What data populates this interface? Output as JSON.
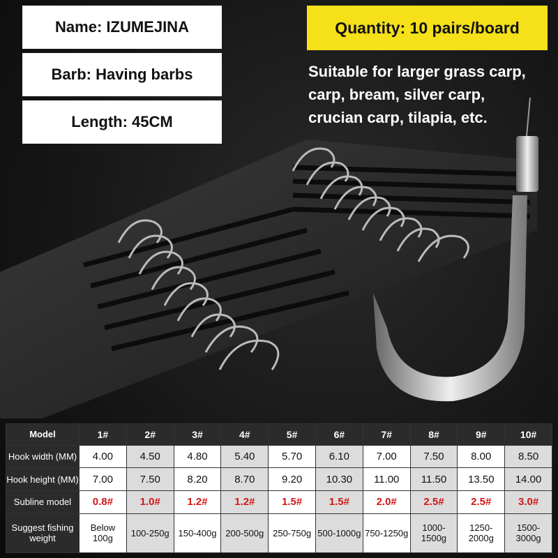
{
  "info": {
    "name": "Name: IZUMEJINA",
    "barb": "Barb: Having barbs",
    "length": "Length: 45CM"
  },
  "quantity": "Quantity: 10 pairs/board",
  "suitable": [
    "Suitable for larger grass carp,",
    "carp, bream, silver carp,",
    "crucian carp, tilapia, etc."
  ],
  "colors": {
    "highlight": "#f5e01a",
    "subline_text": "#d01818",
    "header_bg": "#2b2b2b"
  },
  "table": {
    "header": [
      "Model",
      "1#",
      "2#",
      "3#",
      "4#",
      "5#",
      "6#",
      "7#",
      "8#",
      "9#",
      "10#"
    ],
    "rows": [
      {
        "label": "Hook width (MM)",
        "values": [
          "4.00",
          "4.50",
          "4.80",
          "5.40",
          "5.70",
          "6.10",
          "7.00",
          "7.50",
          "8.00",
          "8.50"
        ]
      },
      {
        "label": "Hook height (MM)",
        "values": [
          "7.00",
          "7.50",
          "8.20",
          "8.70",
          "9.20",
          "10.30",
          "11.00",
          "11.50",
          "13.50",
          "14.00"
        ]
      },
      {
        "label": "Subline model",
        "values": [
          "0.8#",
          "1.0#",
          "1.2#",
          "1.2#",
          "1.5#",
          "1.5#",
          "2.0#",
          "2.5#",
          "2.5#",
          "3.0#"
        ]
      },
      {
        "label": "Suggest fishing weight",
        "values": [
          "Below 100g",
          "100-250g",
          "150-400g",
          "200-500g",
          "250-750g",
          "500-1000g",
          "750-1250g",
          "1000-1500g",
          "1250-2000g",
          "1500-3000g"
        ]
      }
    ]
  }
}
